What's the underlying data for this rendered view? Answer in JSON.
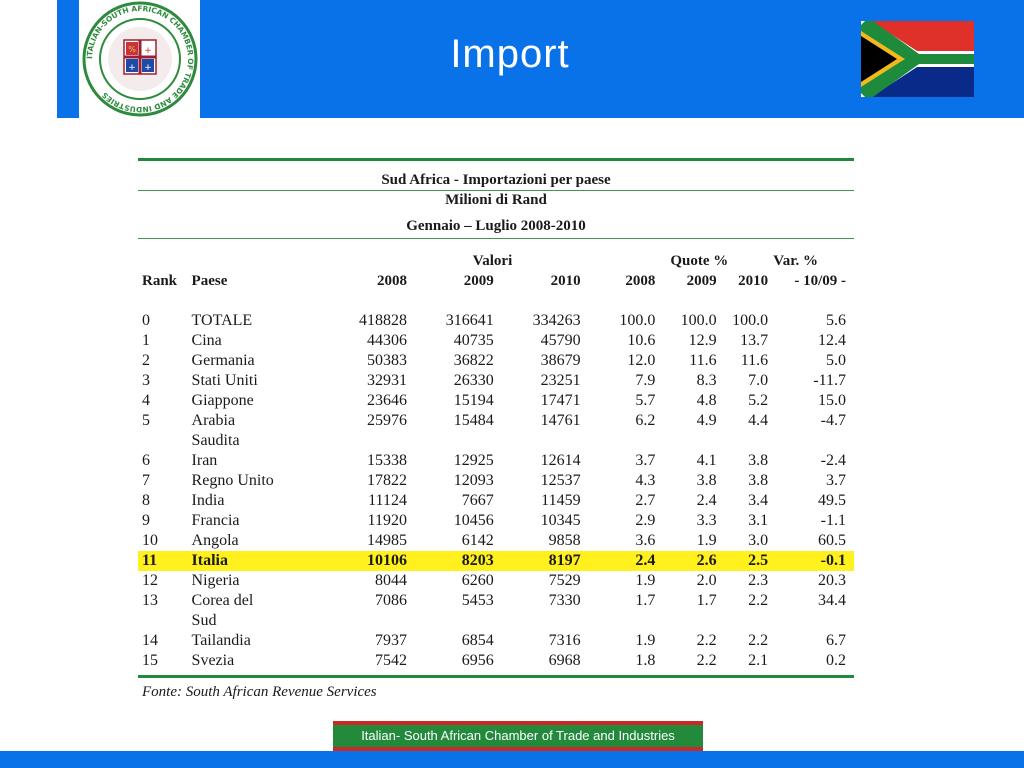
{
  "header": {
    "title": "Import",
    "logo_ring_text": "ITALIAN-SOUTH AFRICAN CHAMBER OF TRADE AND INDUSTRIES",
    "logo_icon": "chamber-seal-logo",
    "flag_icon": "south-africa-flag"
  },
  "colors": {
    "brand_blue": "#0a72e8",
    "highlight": "#fff01e",
    "rule_green": "#1f8a3a",
    "banner_green": "#238a3c",
    "banner_red": "#c92a28"
  },
  "table": {
    "title": "Sud Africa - Importazioni per paese",
    "unit": "Milioni di Rand",
    "period": "Gennaio – Luglio 2008-2010",
    "group_headers": {
      "valori": "Valori",
      "quote": "Quote %",
      "var": "Var. %"
    },
    "columns": [
      "Rank",
      "Paese",
      "2008",
      "2009",
      "2010",
      "2008",
      "2009",
      "2010",
      "- 10/09 -"
    ],
    "rows": [
      {
        "rank": "0",
        "paese": "TOTALE",
        "v2008": "418828",
        "v2009": "316641",
        "v2010": "334263",
        "q2008": "100.0",
        "q2009": "100.0",
        "q2010": "100.0",
        "var": "5.6"
      },
      {
        "rank": "1",
        "paese": "Cina",
        "v2008": "44306",
        "v2009": "40735",
        "v2010": "45790",
        "q2008": "10.6",
        "q2009": "12.9",
        "q2010": "13.7",
        "var": "12.4"
      },
      {
        "rank": "2",
        "paese": "Germania",
        "v2008": "50383",
        "v2009": "36822",
        "v2010": "38679",
        "q2008": "12.0",
        "q2009": "11.6",
        "q2010": "11.6",
        "var": "5.0"
      },
      {
        "rank": "3",
        "paese": "Stati Uniti",
        "v2008": "32931",
        "v2009": "26330",
        "v2010": "23251",
        "q2008": "7.9",
        "q2009": "8.3",
        "q2010": "7.0",
        "var": "-11.7"
      },
      {
        "rank": "4",
        "paese": "Giappone",
        "v2008": "23646",
        "v2009": "15194",
        "v2010": "17471",
        "q2008": "5.7",
        "q2009": "4.8",
        "q2010": "5.2",
        "var": "15.0"
      },
      {
        "rank": "5",
        "paese": "Arabia",
        "paese2": "Saudita",
        "v2008": "25976",
        "v2009": "15484",
        "v2010": "14761",
        "q2008": "6.2",
        "q2009": "4.9",
        "q2010": "4.4",
        "var": "-4.7"
      },
      {
        "rank": "6",
        "paese": "Iran",
        "v2008": "15338",
        "v2009": "12925",
        "v2010": "12614",
        "q2008": "3.7",
        "q2009": "4.1",
        "q2010": "3.8",
        "var": "-2.4"
      },
      {
        "rank": "7",
        "paese": "Regno Unito",
        "v2008": "17822",
        "v2009": "12093",
        "v2010": "12537",
        "q2008": "4.3",
        "q2009": "3.8",
        "q2010": "3.8",
        "var": "3.7"
      },
      {
        "rank": "8",
        "paese": "India",
        "v2008": "11124",
        "v2009": "7667",
        "v2010": "11459",
        "q2008": "2.7",
        "q2009": "2.4",
        "q2010": "3.4",
        "var": "49.5"
      },
      {
        "rank": "9",
        "paese": "Francia",
        "v2008": "11920",
        "v2009": "10456",
        "v2010": "10345",
        "q2008": "2.9",
        "q2009": "3.3",
        "q2010": "3.1",
        "var": "-1.1"
      },
      {
        "rank": "10",
        "paese": "Angola",
        "v2008": "14985",
        "v2009": "6142",
        "v2010": "9858",
        "q2008": "3.6",
        "q2009": "1.9",
        "q2010": "3.0",
        "var": "60.5"
      },
      {
        "rank": "11",
        "paese": "Italia",
        "v2008": "10106",
        "v2009": "8203",
        "v2010": "8197",
        "q2008": "2.4",
        "q2009": "2.6",
        "q2010": "2.5",
        "var": "-0.1",
        "highlight": true
      },
      {
        "rank": "12",
        "paese": "Nigeria",
        "v2008": "8044",
        "v2009": "6260",
        "v2010": "7529",
        "q2008": "1.9",
        "q2009": "2.0",
        "q2010": "2.3",
        "var": "20.3"
      },
      {
        "rank": "13",
        "paese": "Corea del",
        "paese2": "Sud",
        "v2008": "7086",
        "v2009": "5453",
        "v2010": "7330",
        "q2008": "1.7",
        "q2009": "1.7",
        "q2010": "2.2",
        "var": "34.4"
      },
      {
        "rank": "14",
        "paese": "Tailandia",
        "v2008": "7937",
        "v2009": "6854",
        "v2010": "7316",
        "q2008": "1.9",
        "q2009": "2.2",
        "q2010": "2.2",
        "var": "6.7"
      },
      {
        "rank": "15",
        "paese": "Svezia",
        "v2008": "7542",
        "v2009": "6956",
        "v2010": "6968",
        "q2008": "1.8",
        "q2009": "2.2",
        "q2010": "2.1",
        "var": "0.2"
      }
    ],
    "source": "Fonte: South African Revenue Services"
  },
  "footer": {
    "banner": "Italian- South African Chamber of Trade and Industries"
  }
}
